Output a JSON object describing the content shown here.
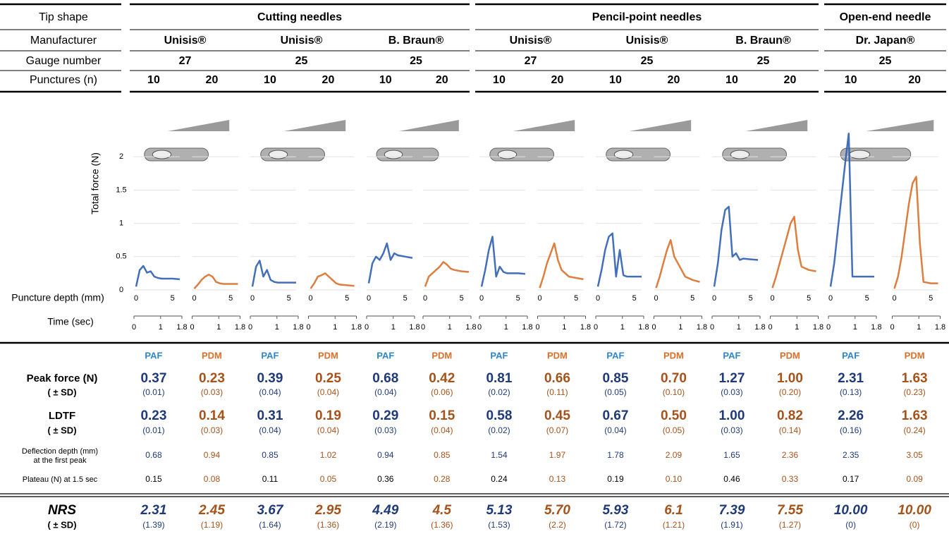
{
  "row_labels": {
    "tip_shape": "Tip shape",
    "manufacturer": "Manufacturer",
    "gauge": "Gauge number",
    "punctures": "Punctures (n)",
    "peak": "Peak force (N)",
    "peak_sd": "( ± SD)",
    "ldtf": "LDTF",
    "ldtf_sd": "( ± SD)",
    "deflection": [
      "Deflection depth (mm)",
      "at the first peak"
    ],
    "plateau": "Plateau (N) at 1.5 sec",
    "nrs": "NRS",
    "nrs_sd": "( ± SD)"
  },
  "axis_labels": {
    "y": "Total force  (N)",
    "depth": "Puncture depth (mm)",
    "time": "Time (sec)"
  },
  "groups": [
    {
      "tip_shape": "Cutting needles",
      "needles": [
        {
          "manufacturer": "Unisis®",
          "gauge": "27",
          "columns": [
            {
              "punctures": "10",
              "method": "PAF",
              "peak": "0.37",
              "peak_sd": "(0.01)",
              "ldtf": "0.23",
              "ldtf_sd": "(0.01)",
              "deflection": "0.68",
              "plateau": "0.15",
              "nrs": "2.31",
              "nrs_sd": "(1.39)"
            },
            {
              "punctures": "20",
              "method": "PDM",
              "peak": "0.23",
              "peak_sd": "(0.03)",
              "ldtf": "0.14",
              "ldtf_sd": "(0.03)",
              "deflection": "0.94",
              "plateau": "0.08",
              "nrs": "2.45",
              "nrs_sd": "(1.19)"
            }
          ]
        },
        {
          "manufacturer": "Unisis®",
          "gauge": "25",
          "columns": [
            {
              "punctures": "10",
              "method": "PAF",
              "peak": "0.39",
              "peak_sd": "(0.04)",
              "ldtf": "0.31",
              "ldtf_sd": "(0.04)",
              "deflection": "0.85",
              "plateau": "0.11",
              "nrs": "3.67",
              "nrs_sd": "(1.64)"
            },
            {
              "punctures": "20",
              "method": "PDM",
              "peak": "0.25",
              "peak_sd": "(0.04)",
              "ldtf": "0.19",
              "ldtf_sd": "(0.04)",
              "deflection": "1.02",
              "plateau": "0.05",
              "nrs": "2.95",
              "nrs_sd": "(1.36)"
            }
          ]
        },
        {
          "manufacturer": "B. Braun®",
          "gauge": "25",
          "columns": [
            {
              "punctures": "10",
              "method": "PAF",
              "peak": "0.68",
              "peak_sd": "(0.04)",
              "ldtf": "0.29",
              "ldtf_sd": "(0.03)",
              "deflection": "0.94",
              "plateau": "0.36",
              "nrs": "4.49",
              "nrs_sd": "(2.19)"
            },
            {
              "punctures": "20",
              "method": "PDM",
              "peak": "0.42",
              "peak_sd": "(0.06)",
              "ldtf": "0.15",
              "ldtf_sd": "(0.04)",
              "deflection": "0.85",
              "plateau": "0.28",
              "nrs": "4.5",
              "nrs_sd": "(1.36)"
            }
          ]
        }
      ]
    },
    {
      "tip_shape": "Pencil-point needles",
      "needles": [
        {
          "manufacturer": "Unisis®",
          "gauge": "27",
          "columns": [
            {
              "punctures": "10",
              "method": "PAF",
              "peak": "0.81",
              "peak_sd": "(0.02)",
              "ldtf": "0.58",
              "ldtf_sd": "(0.02)",
              "deflection": "1.54",
              "plateau": "0.24",
              "nrs": "5.13",
              "nrs_sd": "(1.53)"
            },
            {
              "punctures": "20",
              "method": "PDM",
              "peak": "0.66",
              "peak_sd": "(0.11)",
              "ldtf": "0.45",
              "ldtf_sd": "(0.07)",
              "deflection": "1.97",
              "plateau": "0.13",
              "nrs": "5.70",
              "nrs_sd": "(2.2)"
            }
          ]
        },
        {
          "manufacturer": "Unisis®",
          "gauge": "25",
          "columns": [
            {
              "punctures": "10",
              "method": "PAF",
              "peak": "0.85",
              "peak_sd": "(0.05)",
              "ldtf": "0.67",
              "ldtf_sd": "(0.04)",
              "deflection": "1.78",
              "plateau": "0.19",
              "nrs": "5.93",
              "nrs_sd": "(1.72)"
            },
            {
              "punctures": "20",
              "method": "PDM",
              "peak": "0.70",
              "peak_sd": "(0.10)",
              "ldtf": "0.50",
              "ldtf_sd": "(0.05)",
              "deflection": "2.09",
              "plateau": "0.10",
              "nrs": "6.1",
              "nrs_sd": "(1.21)"
            }
          ]
        },
        {
          "manufacturer": "B. Braun®",
          "gauge": "25",
          "columns": [
            {
              "punctures": "10",
              "method": "PAF",
              "peak": "1.27",
              "peak_sd": "(0.03)",
              "ldtf": "1.00",
              "ldtf_sd": "(0.03)",
              "deflection": "1.65",
              "plateau": "0.46",
              "nrs": "7.39",
              "nrs_sd": "(1.91)"
            },
            {
              "punctures": "20",
              "method": "PDM",
              "peak": "1.00",
              "peak_sd": "(0.20)",
              "ldtf": "0.82",
              "ldtf_sd": "(0.14)",
              "deflection": "2.36",
              "plateau": "0.33",
              "nrs": "7.55",
              "nrs_sd": "(1.27)"
            }
          ]
        }
      ]
    },
    {
      "tip_shape": "Open-end needle",
      "needles": [
        {
          "manufacturer": "Dr. Japan®",
          "gauge": "25",
          "columns": [
            {
              "punctures": "10",
              "method": "PAF",
              "peak": "2.31",
              "peak_sd": "(0.13)",
              "ldtf": "2.26",
              "ldtf_sd": "(0.16)",
              "deflection": "2.35",
              "plateau": "0.17",
              "nrs": "10.00",
              "nrs_sd": "(0)"
            },
            {
              "punctures": "20",
              "method": "PDM",
              "peak": "1.63",
              "peak_sd": "(0.23)",
              "ldtf": "1.63",
              "ldtf_sd": "(0.24)",
              "deflection": "3.05",
              "plateau": "0.09",
              "nrs": "10.00",
              "nrs_sd": "(0)"
            }
          ]
        }
      ]
    }
  ],
  "chart_data": [
    {
      "type": "line",
      "color": "#2f5fb3",
      "x": [
        0,
        0.5,
        1,
        1.5,
        2,
        2.5,
        3,
        3.5,
        4,
        5,
        6
      ],
      "values": [
        0.05,
        0.3,
        0.36,
        0.26,
        0.28,
        0.2,
        0.18,
        0.17,
        0.17,
        0.17,
        0.16
      ],
      "xlim": [
        0,
        6
      ],
      "xticks": [
        0,
        5
      ],
      "x2lim": [
        0,
        1.8
      ],
      "x2ticks": [
        0,
        1,
        1.8
      ],
      "ylim": [
        0,
        2.5
      ],
      "yticks": [
        0,
        0.5,
        1,
        1.5,
        2
      ]
    },
    {
      "type": "line",
      "color": "#d9702a",
      "x": [
        0,
        0.5,
        1,
        1.5,
        2,
        2.5,
        3,
        3.5,
        4,
        5,
        6
      ],
      "values": [
        0.02,
        0.08,
        0.15,
        0.2,
        0.23,
        0.2,
        0.12,
        0.1,
        0.09,
        0.09,
        0.09
      ],
      "xlim": [
        0,
        6
      ],
      "xticks": [
        0,
        5
      ],
      "x2lim": [
        0,
        1.8
      ],
      "x2ticks": [
        0,
        1,
        1.8
      ],
      "ylim": [
        0,
        2.5
      ],
      "yticks": [
        0,
        0.5,
        1,
        1.5,
        2
      ]
    },
    {
      "type": "line",
      "color": "#2f5fb3",
      "x": [
        0,
        0.5,
        1,
        1.5,
        2,
        2.5,
        3,
        3.5,
        4,
        5,
        6
      ],
      "values": [
        0.05,
        0.35,
        0.44,
        0.2,
        0.3,
        0.15,
        0.12,
        0.11,
        0.11,
        0.11,
        0.11
      ],
      "xlim": [
        0,
        6
      ],
      "xticks": [
        0,
        5
      ],
      "x2lim": [
        0,
        1.8
      ],
      "x2ticks": [
        0,
        1,
        1.8
      ],
      "ylim": [
        0,
        2.5
      ],
      "yticks": [
        0,
        0.5,
        1,
        1.5,
        2
      ]
    },
    {
      "type": "line",
      "color": "#d9702a",
      "x": [
        0,
        0.5,
        1,
        1.5,
        2,
        2.5,
        3,
        3.5,
        4,
        5,
        6
      ],
      "values": [
        0.02,
        0.1,
        0.2,
        0.22,
        0.25,
        0.2,
        0.15,
        0.1,
        0.08,
        0.07,
        0.06
      ],
      "xlim": [
        0,
        6
      ],
      "xticks": [
        0,
        5
      ],
      "x2lim": [
        0,
        1.8
      ],
      "x2ticks": [
        0,
        1,
        1.8
      ],
      "ylim": [
        0,
        2.5
      ],
      "yticks": [
        0,
        0.5,
        1,
        1.5,
        2
      ]
    },
    {
      "type": "line",
      "color": "#2f5fb3",
      "x": [
        0,
        0.5,
        1,
        1.5,
        2,
        2.5,
        3,
        3.5,
        4,
        5,
        6
      ],
      "values": [
        0.1,
        0.4,
        0.5,
        0.45,
        0.55,
        0.7,
        0.45,
        0.55,
        0.52,
        0.5,
        0.48
      ],
      "xlim": [
        0,
        6
      ],
      "xticks": [
        0,
        5
      ],
      "x2lim": [
        0,
        1.8
      ],
      "x2ticks": [
        0,
        1,
        1.8
      ],
      "ylim": [
        0,
        2.5
      ],
      "yticks": [
        0,
        0.5,
        1,
        1.5,
        2
      ]
    },
    {
      "type": "line",
      "color": "#d9702a",
      "x": [
        0,
        0.5,
        1,
        1.5,
        2,
        2.5,
        3,
        3.5,
        4,
        5,
        6
      ],
      "values": [
        0.05,
        0.2,
        0.25,
        0.3,
        0.35,
        0.42,
        0.38,
        0.32,
        0.3,
        0.28,
        0.27
      ],
      "xlim": [
        0,
        6
      ],
      "xticks": [
        0,
        5
      ],
      "x2lim": [
        0,
        1.8
      ],
      "x2ticks": [
        0,
        1,
        1.8
      ],
      "ylim": [
        0,
        2.5
      ],
      "yticks": [
        0,
        0.5,
        1,
        1.5,
        2
      ]
    },
    {
      "type": "line",
      "color": "#2f5fb3",
      "x": [
        0,
        0.5,
        1,
        1.5,
        2,
        2.5,
        3,
        3.5,
        4,
        5,
        6
      ],
      "values": [
        0.05,
        0.3,
        0.6,
        0.8,
        0.2,
        0.35,
        0.27,
        0.25,
        0.25,
        0.25,
        0.24
      ],
      "xlim": [
        0,
        6
      ],
      "xticks": [
        0,
        5
      ],
      "x2lim": [
        0,
        1.8
      ],
      "x2ticks": [
        0,
        1,
        1.8
      ],
      "ylim": [
        0,
        2.5
      ],
      "yticks": [
        0,
        0.5,
        1,
        1.5,
        2
      ]
    },
    {
      "type": "line",
      "color": "#d9702a",
      "x": [
        0,
        0.5,
        1,
        1.5,
        2,
        2.5,
        3,
        3.5,
        4,
        5,
        6
      ],
      "values": [
        0.03,
        0.2,
        0.4,
        0.55,
        0.7,
        0.45,
        0.3,
        0.25,
        0.2,
        0.18,
        0.16
      ],
      "xlim": [
        0,
        6
      ],
      "xticks": [
        0,
        5
      ],
      "x2lim": [
        0,
        1.8
      ],
      "x2ticks": [
        0,
        1,
        1.8
      ],
      "ylim": [
        0,
        2.5
      ],
      "yticks": [
        0,
        0.5,
        1,
        1.5,
        2
      ]
    },
    {
      "type": "line",
      "color": "#2f5fb3",
      "x": [
        0,
        0.5,
        1,
        1.5,
        2,
        2.5,
        3,
        3.5,
        4,
        5,
        6
      ],
      "values": [
        0.05,
        0.3,
        0.6,
        0.8,
        0.85,
        0.2,
        0.6,
        0.22,
        0.2,
        0.2,
        0.2
      ],
      "xlim": [
        0,
        6
      ],
      "xticks": [
        0,
        5
      ],
      "x2lim": [
        0,
        1.8
      ],
      "x2ticks": [
        0,
        1,
        1.8
      ],
      "ylim": [
        0,
        2.5
      ],
      "yticks": [
        0,
        0.5,
        1,
        1.5,
        2
      ]
    },
    {
      "type": "line",
      "color": "#d9702a",
      "x": [
        0,
        0.5,
        1,
        1.5,
        2,
        2.5,
        3,
        3.5,
        4,
        5,
        6
      ],
      "values": [
        0.03,
        0.2,
        0.4,
        0.6,
        0.75,
        0.5,
        0.4,
        0.3,
        0.2,
        0.15,
        0.12
      ],
      "xlim": [
        0,
        6
      ],
      "xticks": [
        0,
        5
      ],
      "x2lim": [
        0,
        1.8
      ],
      "x2ticks": [
        0,
        1,
        1.8
      ],
      "ylim": [
        0,
        2.5
      ],
      "yticks": [
        0,
        0.5,
        1,
        1.5,
        2
      ]
    },
    {
      "type": "line",
      "color": "#2f5fb3",
      "x": [
        0,
        0.5,
        1,
        1.5,
        2,
        2.5,
        3,
        3.5,
        4,
        5,
        6
      ],
      "values": [
        0.05,
        0.4,
        0.9,
        1.2,
        1.25,
        0.5,
        0.55,
        0.45,
        0.47,
        0.46,
        0.45
      ],
      "xlim": [
        0,
        6
      ],
      "xticks": [
        0,
        5
      ],
      "x2lim": [
        0,
        1.8
      ],
      "x2ticks": [
        0,
        1,
        1.8
      ],
      "ylim": [
        0,
        2.5
      ],
      "yticks": [
        0,
        0.5,
        1,
        1.5,
        2
      ]
    },
    {
      "type": "line",
      "color": "#d9702a",
      "x": [
        0,
        0.5,
        1,
        1.5,
        2,
        2.5,
        3,
        3.5,
        4,
        5,
        6
      ],
      "values": [
        0.03,
        0.2,
        0.4,
        0.6,
        0.8,
        1.0,
        1.1,
        0.6,
        0.35,
        0.3,
        0.28
      ],
      "xlim": [
        0,
        6
      ],
      "xticks": [
        0,
        5
      ],
      "x2lim": [
        0,
        1.8
      ],
      "x2ticks": [
        0,
        1,
        1.8
      ],
      "ylim": [
        0,
        2.5
      ],
      "yticks": [
        0,
        0.5,
        1,
        1.5,
        2
      ]
    },
    {
      "type": "line",
      "color": "#2f5fb3",
      "x": [
        0,
        0.5,
        1,
        1.5,
        2,
        2.5,
        3,
        3.5,
        4,
        5,
        6
      ],
      "values": [
        0.05,
        0.4,
        0.9,
        1.4,
        1.9,
        2.35,
        0.2,
        0.2,
        0.2,
        0.2,
        0.2
      ],
      "xlim": [
        0,
        6
      ],
      "xticks": [
        0,
        5
      ],
      "x2lim": [
        0,
        1.8
      ],
      "x2ticks": [
        0,
        1,
        1.8
      ],
      "ylim": [
        0,
        2.5
      ],
      "yticks": [
        0,
        0.5,
        1,
        1.5,
        2
      ]
    },
    {
      "type": "line",
      "color": "#d9702a",
      "x": [
        0,
        0.5,
        1,
        1.5,
        2,
        2.5,
        3,
        3.5,
        4,
        5,
        6
      ],
      "values": [
        0.02,
        0.2,
        0.5,
        0.9,
        1.3,
        1.6,
        1.7,
        0.7,
        0.12,
        0.1,
        0.1
      ],
      "xlim": [
        0,
        6
      ],
      "xticks": [
        0,
        5
      ],
      "x2lim": [
        0,
        1.8
      ],
      "x2ticks": [
        0,
        1,
        1.8
      ],
      "ylim": [
        0,
        2.5
      ],
      "yticks": [
        0,
        0.5,
        1,
        1.5,
        2
      ]
    }
  ]
}
